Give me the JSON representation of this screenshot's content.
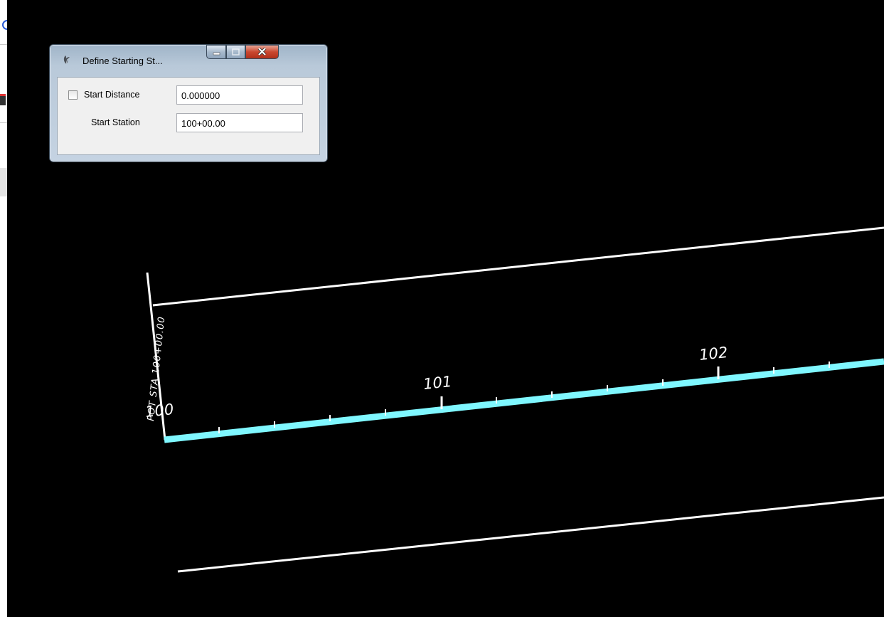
{
  "dialog": {
    "title": "Define Starting St...",
    "start_distance_label": "Start Distance",
    "start_distance_value": "0.000000",
    "start_distance_checked": false,
    "start_station_label": "Start Station",
    "start_station_value": "100+00.00"
  },
  "cad": {
    "station_labels": [
      "100",
      "101",
      "102"
    ],
    "vertical_label": "POT STA 100+00.00"
  },
  "colors": {
    "background": "#000000",
    "alignment": "#7ff7ff",
    "line": "#ffffff"
  }
}
